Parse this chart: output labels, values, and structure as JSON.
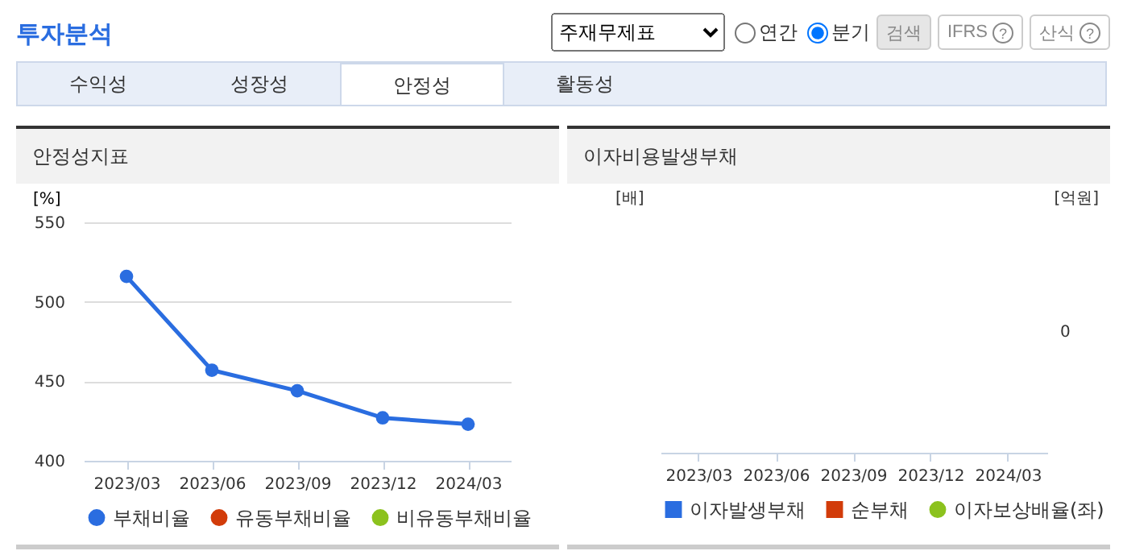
{
  "chart_data": [
    {
      "type": "line",
      "title": "안정성지표",
      "ylabel": "[%]",
      "categories": [
        "2023/03",
        "2023/06",
        "2023/09",
        "2023/12",
        "2024/03"
      ],
      "series": [
        {
          "name": "부채비율",
          "color": "#2a6de0",
          "values": [
            516,
            457,
            444,
            427,
            423
          ]
        },
        {
          "name": "유동부채비율",
          "color": "#d23c0a",
          "values": [
            null,
            null,
            null,
            null,
            null
          ]
        },
        {
          "name": "비유동부채비율",
          "color": "#8cc21e",
          "values": [
            null,
            null,
            null,
            null,
            null
          ]
        }
      ],
      "ylim": [
        400,
        550
      ],
      "yticks": [
        400,
        450,
        500,
        550
      ],
      "grid": "y",
      "legend": "bottom",
      "marker": "circle",
      "annotations": [
        "투자분석",
        "주재무제표",
        "연간",
        "분기",
        "검색",
        "IFRS",
        "산식",
        "수익성",
        "성장성",
        "안정성",
        "활동성",
        "?"
      ]
    },
    {
      "type": "other",
      "title": "이자비용발생부채",
      "ylabel": "[배]",
      "y2label": "[억원]",
      "categories": [
        "2023/03",
        "2023/06",
        "2023/09",
        "2023/12",
        "2024/03"
      ],
      "series": [
        {
          "name": "이자발생부채",
          "type": "bar",
          "color": "#2a6de0",
          "values": [
            null,
            null,
            null,
            null,
            null
          ]
        },
        {
          "name": "순부채",
          "type": "bar",
          "color": "#d23c0a",
          "values": [
            null,
            null,
            null,
            null,
            null
          ]
        },
        {
          "name": "이자보상배율(좌)",
          "type": "line",
          "color": "#8cc21e",
          "values": [
            null,
            null,
            null,
            null,
            null
          ]
        }
      ],
      "legend": "bottom",
      "annotations": [
        "0"
      ]
    }
  ]
}
